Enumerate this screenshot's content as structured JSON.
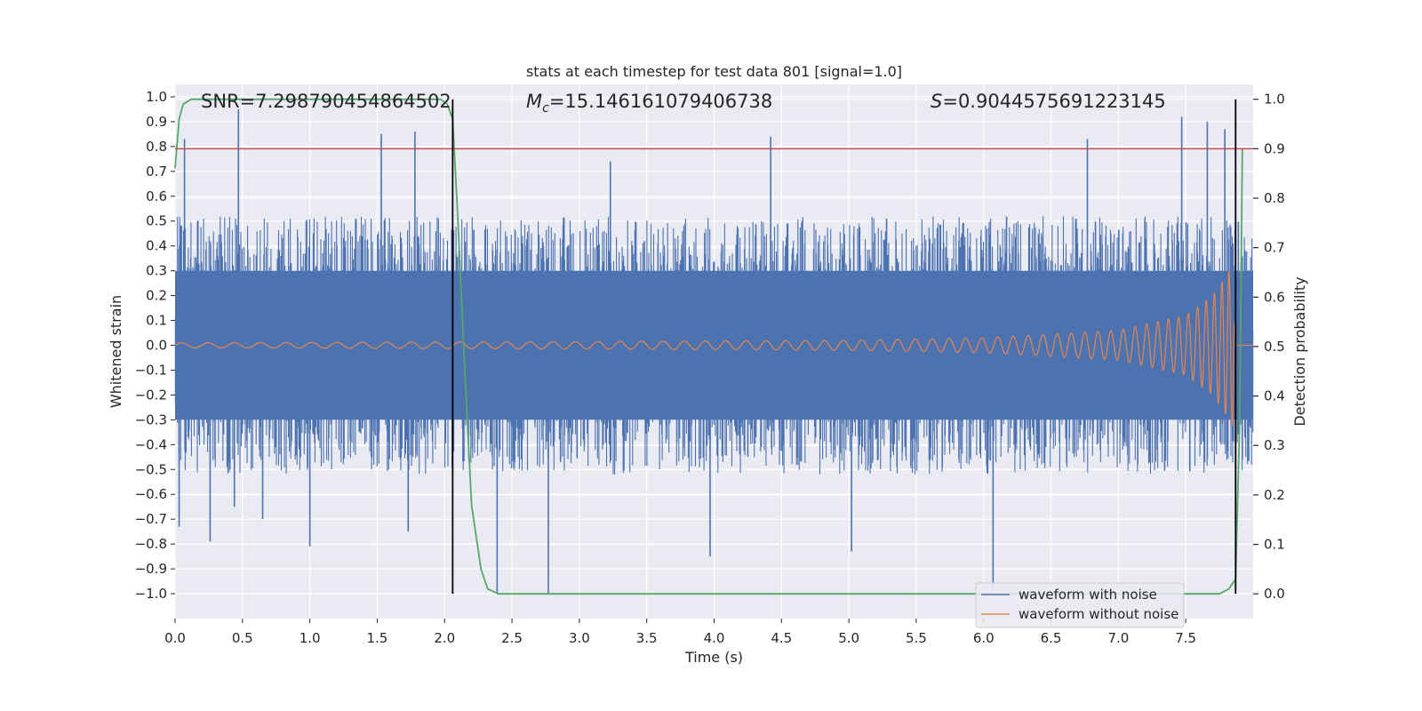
{
  "chart_data": {
    "type": "line",
    "title": "stats at each timestep for test data 801 [signal=1.0]",
    "xlabel": "Time (s)",
    "ylabel": "Whitened strain",
    "y2label": "Detection probability",
    "xlim": [
      0.0,
      8.0
    ],
    "ylim": [
      -1.1,
      1.05
    ],
    "y2lim": [
      -0.05,
      1.03
    ],
    "xticks": [
      "0.0",
      "0.5",
      "1.0",
      "1.5",
      "2.0",
      "2.5",
      "3.0",
      "3.5",
      "4.0",
      "4.5",
      "5.0",
      "5.5",
      "6.0",
      "6.5",
      "7.0",
      "7.5"
    ],
    "yticks": [
      "1.0",
      "0.9",
      "0.8",
      "0.7",
      "0.6",
      "0.5",
      "0.4",
      "0.3",
      "0.2",
      "0.1",
      "0.0",
      "-0.1",
      "-0.2",
      "-0.3",
      "-0.4",
      "-0.5",
      "-0.6",
      "-0.7",
      "-0.8",
      "-0.9",
      "-1.0"
    ],
    "y2ticks": [
      "1.0",
      "0.9",
      "0.8",
      "0.7",
      "0.6",
      "0.5",
      "0.4",
      "0.3",
      "0.2",
      "0.1",
      "0.0"
    ],
    "grid": true,
    "legend_position": "lower-right",
    "annotations": {
      "snr": "SNR=7.298790454864502",
      "mc_symbol": "M",
      "mc_subscript": "c",
      "mc_value": "=15.146161079406738",
      "s_symbol": "S",
      "s_value": "=0.9044575691223145"
    },
    "series": [
      {
        "name": "waveform with noise",
        "color": "#4c72b0",
        "envelope": "dense noise, |strain| mostly within 0.4, peaks to about ±0.9",
        "spikes": [
          {
            "x": 0.03,
            "y": -0.73
          },
          {
            "x": 0.07,
            "y": 0.83
          },
          {
            "x": 0.26,
            "y": -0.79
          },
          {
            "x": 0.47,
            "y": 0.95
          },
          {
            "x": 0.44,
            "y": -0.65
          },
          {
            "x": 0.65,
            "y": -0.7
          },
          {
            "x": 1.0,
            "y": -0.81
          },
          {
            "x": 1.53,
            "y": 0.85
          },
          {
            "x": 1.73,
            "y": -0.75
          },
          {
            "x": 1.78,
            "y": 0.86
          },
          {
            "x": 2.39,
            "y": -1.0
          },
          {
            "x": 2.77,
            "y": -1.0
          },
          {
            "x": 3.23,
            "y": 0.74
          },
          {
            "x": 3.97,
            "y": -0.85
          },
          {
            "x": 4.42,
            "y": 0.84
          },
          {
            "x": 5.02,
            "y": -0.83
          },
          {
            "x": 6.07,
            "y": -0.97
          },
          {
            "x": 6.77,
            "y": 0.83
          },
          {
            "x": 7.47,
            "y": 0.92
          },
          {
            "x": 7.66,
            "y": 0.9
          },
          {
            "x": 7.79,
            "y": 0.87
          },
          {
            "x": 7.87,
            "y": -0.8
          }
        ]
      },
      {
        "name": "waveform without noise",
        "color": "#dd8452",
        "amplitude": [
          {
            "t": 0.0,
            "a": 0.01
          },
          {
            "t": 3.0,
            "a": 0.015
          },
          {
            "t": 5.0,
            "a": 0.02
          },
          {
            "t": 6.0,
            "a": 0.03
          },
          {
            "t": 7.0,
            "a": 0.06
          },
          {
            "t": 7.5,
            "a": 0.12
          },
          {
            "t": 7.7,
            "a": 0.2
          },
          {
            "t": 7.8,
            "a": 0.28
          },
          {
            "t": 7.85,
            "a": 0.33
          },
          {
            "t": 7.87,
            "a": 0.0
          },
          {
            "t": 8.0,
            "a": 0.0
          }
        ]
      },
      {
        "name": "",
        "axis": "right",
        "color": "#55a868",
        "x": [
          0.0,
          0.03,
          0.06,
          0.12,
          0.2,
          1.9,
          1.97,
          2.02,
          2.06,
          2.1,
          2.15,
          2.2,
          2.27,
          2.32,
          2.4,
          7.75,
          7.82,
          7.87,
          7.9,
          7.92
        ],
        "y": [
          0.86,
          0.96,
          0.99,
          1.0,
          1.0,
          1.0,
          1.0,
          0.99,
          0.96,
          0.75,
          0.45,
          0.18,
          0.05,
          0.01,
          0.0,
          0.0,
          0.01,
          0.03,
          0.35,
          0.9
        ]
      },
      {
        "name": "",
        "axis": "right",
        "type": "hline",
        "color": "#c44e52",
        "y": 0.9
      }
    ],
    "vlines": [
      {
        "x": 2.06,
        "color": "#000000"
      },
      {
        "x": 7.87,
        "color": "#000000"
      }
    ]
  }
}
